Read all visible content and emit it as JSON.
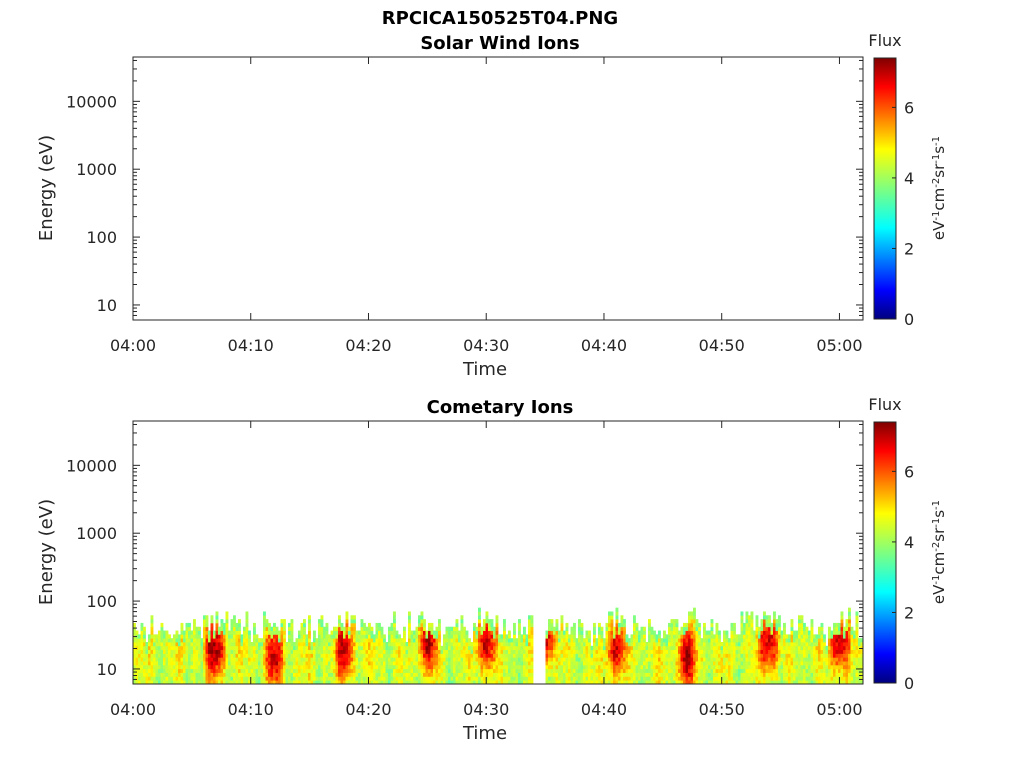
{
  "figure": {
    "title": "RPCICA150525T04.PNG"
  },
  "chart_data": [
    {
      "type": "heatmap",
      "title": "Solar Wind Ions",
      "xlabel": "Time",
      "ylabel": "Energy (eV)",
      "x_range": [
        "04:00",
        "05:02"
      ],
      "x_ticks": [
        "04:00",
        "04:10",
        "04:20",
        "04:30",
        "04:40",
        "04:50",
        "05:00"
      ],
      "y_scale": "log",
      "y_range": [
        6,
        45000
      ],
      "y_ticks": [
        "10",
        "100",
        "1000",
        "10000"
      ],
      "colorbar": {
        "label": "Flux",
        "units": "eV-1cm-2sr-1s-1",
        "range": [
          0,
          7.4
        ],
        "ticks": [
          "0",
          "2",
          "4",
          "6"
        ],
        "colormap": "jet"
      },
      "data_present": false,
      "bands": []
    },
    {
      "type": "heatmap",
      "title": "Cometary Ions",
      "xlabel": "Time",
      "ylabel": "Energy (eV)",
      "x_range": [
        "04:00",
        "05:02"
      ],
      "x_ticks": [
        "04:00",
        "04:10",
        "04:20",
        "04:30",
        "04:40",
        "04:50",
        "05:00"
      ],
      "y_scale": "log",
      "y_range": [
        6,
        45000
      ],
      "y_ticks": [
        "10",
        "100",
        "1000",
        "10000"
      ],
      "colorbar": {
        "label": "Flux",
        "units": "eV-1cm-2sr-1s-1",
        "range": [
          0,
          7.4
        ],
        "ticks": [
          "0",
          "2",
          "4",
          "6"
        ],
        "colormap": "jet"
      },
      "data_present": true,
      "energy_extent_eV": [
        6,
        80
      ],
      "gaps": [
        [
          "04:34",
          "04:35"
        ]
      ],
      "peak_flux_events": [
        {
          "time": "04:07",
          "energy_eV": 20,
          "flux": 7.2
        },
        {
          "time": "04:12",
          "energy_eV": 15,
          "flux": 6.8
        },
        {
          "time": "04:18",
          "energy_eV": 20,
          "flux": 6.9
        },
        {
          "time": "04:25",
          "energy_eV": 25,
          "flux": 7.0
        },
        {
          "time": "04:30",
          "energy_eV": 25,
          "flux": 7.1
        },
        {
          "time": "04:35",
          "energy_eV": 30,
          "flux": 7.3
        },
        {
          "time": "04:41",
          "energy_eV": 20,
          "flux": 6.9
        },
        {
          "time": "04:47",
          "energy_eV": 15,
          "flux": 7.0
        },
        {
          "time": "04:54",
          "energy_eV": 25,
          "flux": 7.1
        },
        {
          "time": "05:00",
          "energy_eV": 25,
          "flux": 7.2
        }
      ]
    }
  ]
}
